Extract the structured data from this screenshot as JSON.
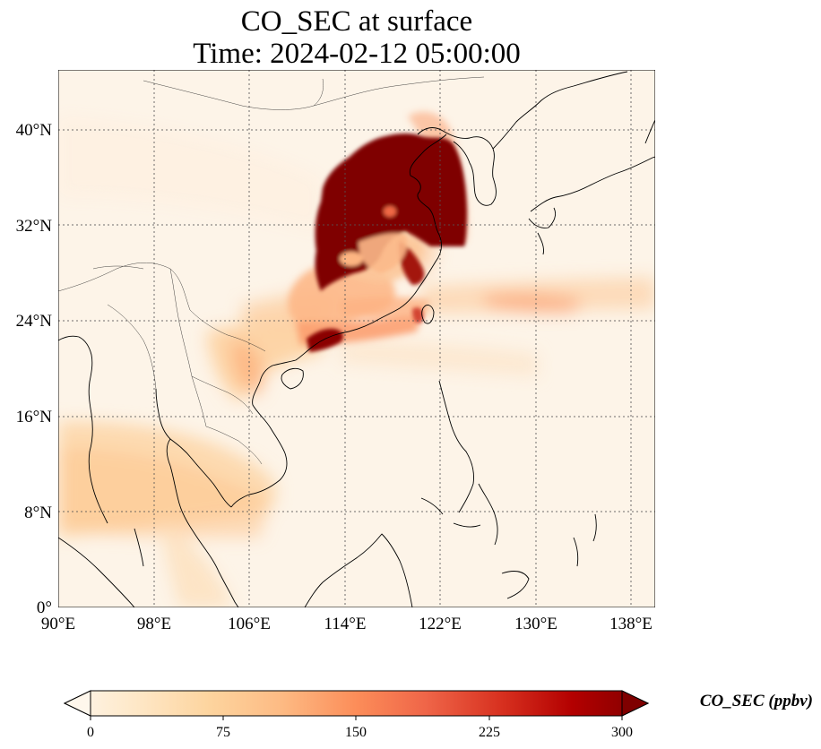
{
  "title": {
    "line1": "CO_SEC at surface",
    "line2": "Time: 2024-02-12 05:00:00"
  },
  "map": {
    "lon_range": [
      90,
      140
    ],
    "lat_range": [
      0,
      45
    ],
    "gridlines": "dotted",
    "colormap": "OrRd-like",
    "x_ticks": [
      "90°E",
      "98°E",
      "106°E",
      "114°E",
      "122°E",
      "130°E",
      "138°E"
    ],
    "y_ticks": [
      "0°",
      "8°N",
      "16°N",
      "24°N",
      "32°N",
      "40°N"
    ]
  },
  "colorbar": {
    "label": "CO_SEC (ppbv)",
    "ticks": [
      "0",
      "75",
      "150",
      "225",
      "300"
    ],
    "range": [
      0,
      300
    ],
    "extend": "both",
    "colors": [
      "#fff7ec",
      "#fee8c8",
      "#fdd49e",
      "#fdbb84",
      "#fc8d59",
      "#ef6548",
      "#d7301f",
      "#b30000",
      "#7f0000"
    ]
  }
}
